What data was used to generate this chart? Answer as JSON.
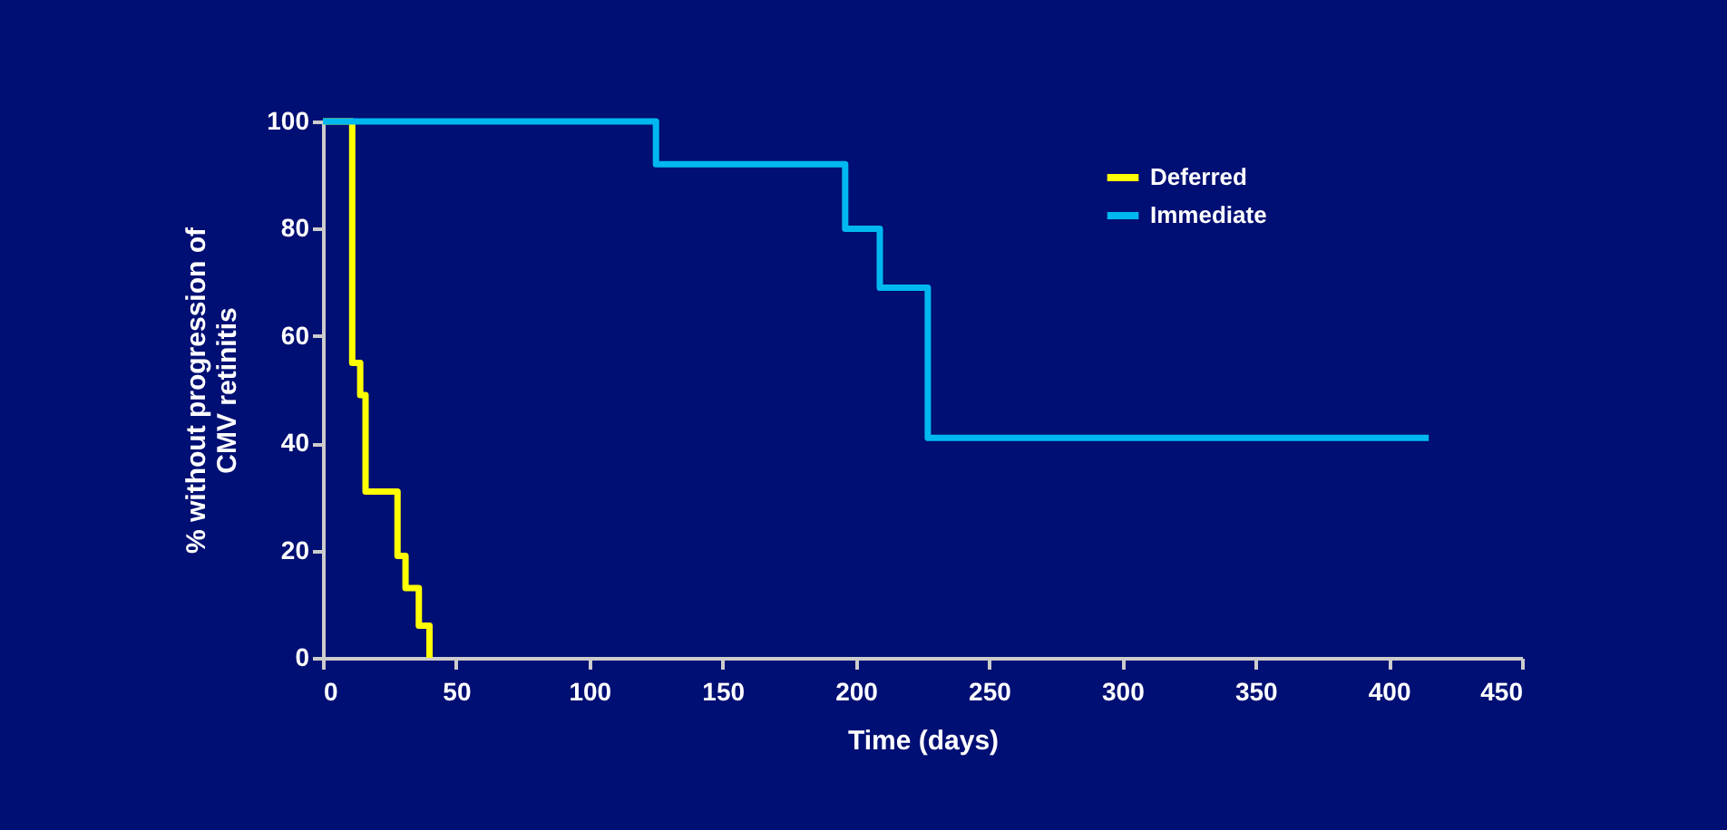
{
  "chart_data": {
    "type": "step",
    "xlabel": "Time (days)",
    "ylabel": "% without progression of CMV retinitis",
    "series": [
      {
        "name": "Deferred",
        "color": "#ffff00",
        "x": [
          0,
          11,
          14,
          16,
          28,
          31,
          36,
          40
        ],
        "values": [
          100,
          55,
          49,
          31,
          19,
          13,
          6,
          0
        ]
      },
      {
        "name": "Immediate",
        "color": "#00b8f0",
        "x": [
          0,
          125,
          196,
          209,
          227,
          415
        ],
        "values": [
          100,
          92,
          80,
          69,
          41,
          41
        ]
      }
    ],
    "xlim": [
      0,
      450
    ],
    "xticks": [
      0,
      50,
      100,
      150,
      200,
      250,
      300,
      350,
      400,
      450
    ],
    "ylim": [
      0,
      100
    ],
    "yticks": [
      0,
      20,
      40,
      60,
      80,
      100
    ],
    "grid": false,
    "legend": "top right"
  }
}
